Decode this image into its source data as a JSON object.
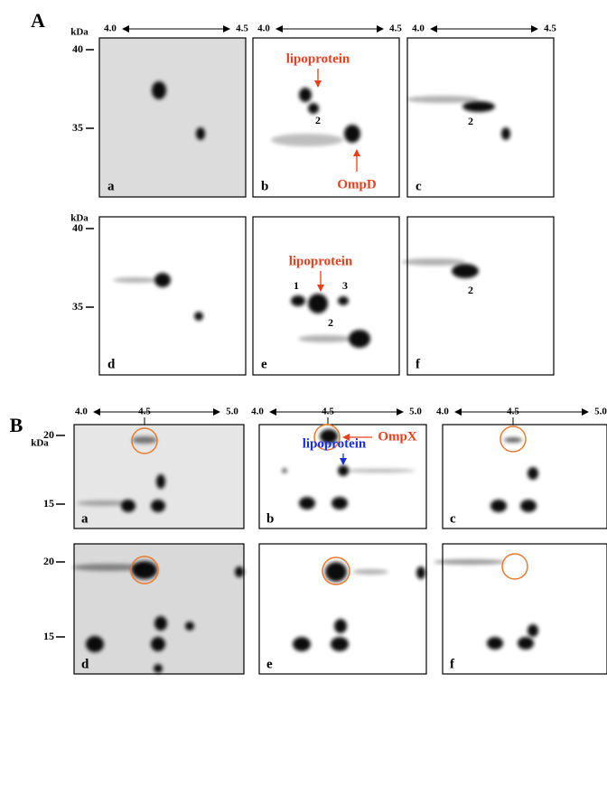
{
  "figure": {
    "part_a": {
      "label": "A",
      "kda": "kDa",
      "ph_start": "4.0",
      "ph_end": "4.5",
      "mw_ticks": [
        "40",
        "35"
      ],
      "panel_letters": [
        "a",
        "b",
        "c",
        "d",
        "e",
        "f"
      ],
      "lipoprotein": "lipoprotein",
      "ompd": "OmpD",
      "spot_numbers": [
        "1",
        "2",
        "3"
      ]
    },
    "part_b": {
      "label": "B",
      "kda": "kDa",
      "ph_ticks": [
        "4.0",
        "4.5",
        "5.0"
      ],
      "mw_ticks": [
        "20",
        "15"
      ],
      "panel_letters": [
        "a",
        "b",
        "c",
        "d",
        "e",
        "f"
      ],
      "ompx": "OmpX",
      "lipoprotein": "lipoprotein"
    }
  }
}
